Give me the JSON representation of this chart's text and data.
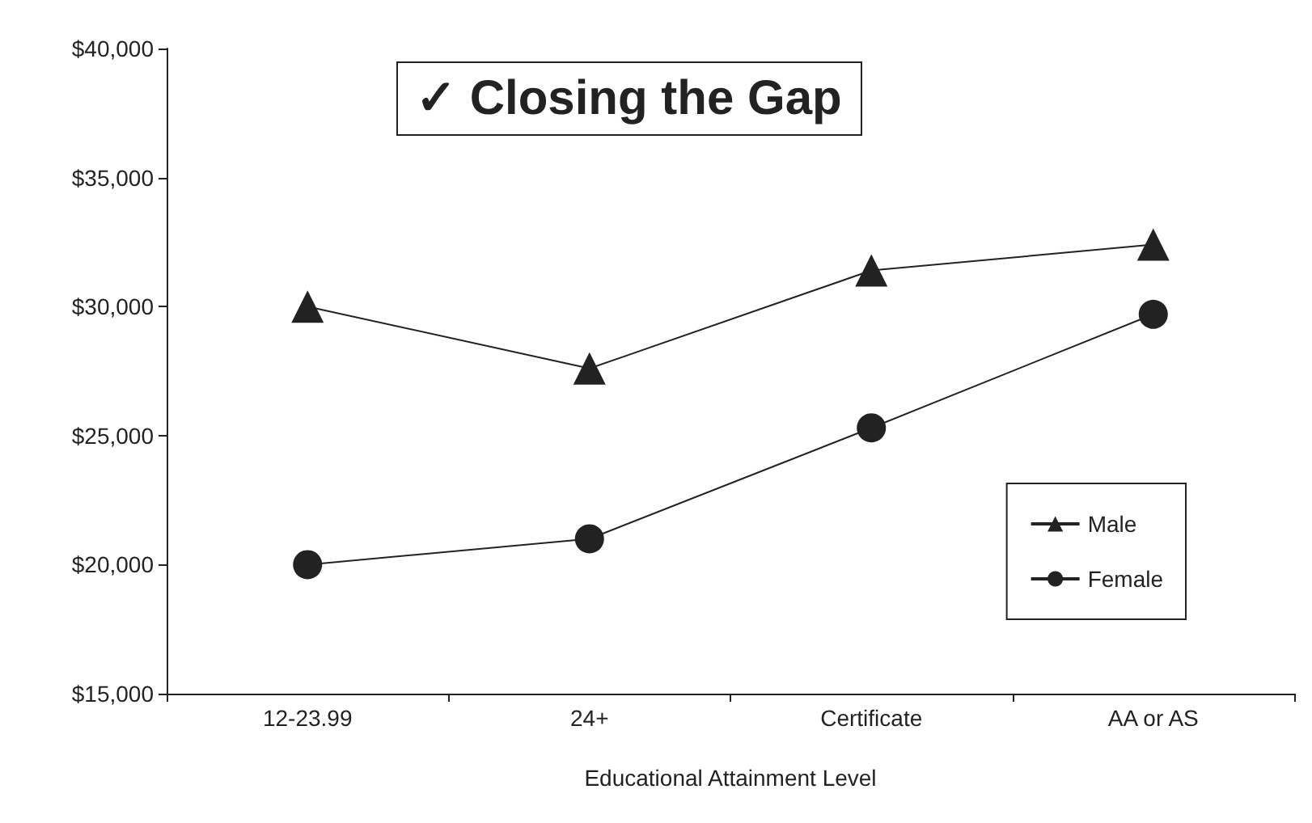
{
  "chart_data": {
    "type": "line",
    "title": "✓ Closing the Gap",
    "xlabel": "Educational Attainment Level",
    "categories": [
      "12-23.99",
      "24+",
      "Certificate",
      "AA or AS"
    ],
    "series": [
      {
        "name": "Male",
        "color": "#222222",
        "marker": "triangle",
        "values": [
          30000,
          27600,
          31400,
          32400
        ]
      },
      {
        "name": "Female",
        "color": "#222222",
        "marker": "circle",
        "values": [
          20000,
          21000,
          25300,
          29700
        ]
      }
    ],
    "ylim": [
      15000,
      40000
    ],
    "yticks": [
      {
        "value": 15000,
        "label": "$15,000"
      },
      {
        "value": 20000,
        "label": "$20,000"
      },
      {
        "value": 25000,
        "label": "$25,000"
      },
      {
        "value": 30000,
        "label": "$30,000"
      },
      {
        "value": 35000,
        "label": "$35,000"
      },
      {
        "value": 40000,
        "label": "$40,000"
      }
    ],
    "grid": false,
    "legend": "bottom right",
    "line_style": "solid"
  }
}
